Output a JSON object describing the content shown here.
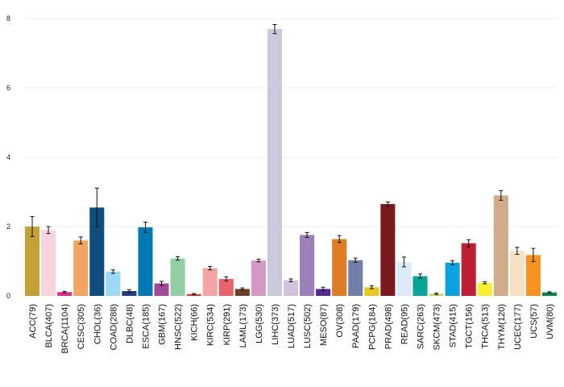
{
  "chart_data": {
    "type": "bar",
    "title": "",
    "xlabel": "",
    "ylabel": "",
    "ylim": [
      0,
      8.4
    ],
    "yticks": [
      0,
      2,
      4,
      6,
      8
    ],
    "grid": true,
    "error_bars": true,
    "categories": [
      "ACC(79)",
      "BLCA(407)",
      "BRCA(1104)",
      "CESC(305)",
      "CHOL(36)",
      "COAD(288)",
      "DLBC(48)",
      "ESCA(185)",
      "GBM(167)",
      "HNSC(522)",
      "KICH(66)",
      "KIRC(534)",
      "KIRP(291)",
      "LAML(173)",
      "LGG(530)",
      "LIHC(373)",
      "LUAD(517)",
      "LUSC(502)",
      "MESO(87)",
      "OV(308)",
      "PAAD(179)",
      "PCPG(184)",
      "PRAD(498)",
      "READ(95)",
      "SARC(263)",
      "SKCM(473)",
      "STAD(415)",
      "TGCT(156)",
      "THCA(513)",
      "THYM(120)",
      "UCEC(177)",
      "UCS(57)",
      "UVM(80)"
    ],
    "values": [
      2.0,
      1.9,
      0.11,
      1.6,
      2.55,
      0.7,
      0.14,
      1.98,
      0.36,
      1.08,
      0.05,
      0.8,
      0.49,
      0.2,
      1.02,
      7.7,
      0.45,
      1.76,
      0.2,
      1.64,
      1.03,
      0.25,
      2.65,
      0.98,
      0.57,
      0.06,
      0.96,
      1.52,
      0.38,
      2.9,
      1.3,
      1.18,
      0.1
    ],
    "errors": [
      0.29,
      0.1,
      0.02,
      0.1,
      0.56,
      0.05,
      0.04,
      0.15,
      0.06,
      0.05,
      0.02,
      0.05,
      0.06,
      0.03,
      0.04,
      0.13,
      0.04,
      0.07,
      0.05,
      0.1,
      0.06,
      0.04,
      0.06,
      0.14,
      0.06,
      0.02,
      0.06,
      0.1,
      0.03,
      0.14,
      0.1,
      0.19,
      0.02
    ],
    "colors": [
      "#C4A035",
      "#F9D4DC",
      "#E2298A",
      "#F2A460",
      "#104C7E",
      "#9CD9F5",
      "#283C80",
      "#0078B3",
      "#A24896",
      "#92CFA4",
      "#E3343B",
      "#F4A4A4",
      "#E8636B",
      "#6B4225",
      "#D498C5",
      "#C9CBDC",
      "#D2C3E1",
      "#9C80B9",
      "#54288E",
      "#DE7C26",
      "#717EA5",
      "#E8C51F",
      "#7A1A1E",
      "#DAEAF6",
      "#07A596",
      "#C2D75F",
      "#0BA3DF",
      "#BE1F34",
      "#F9ED2F",
      "#D1AC8B",
      "#F6E0C6",
      "#F7921F",
      "#0A8645"
    ]
  }
}
